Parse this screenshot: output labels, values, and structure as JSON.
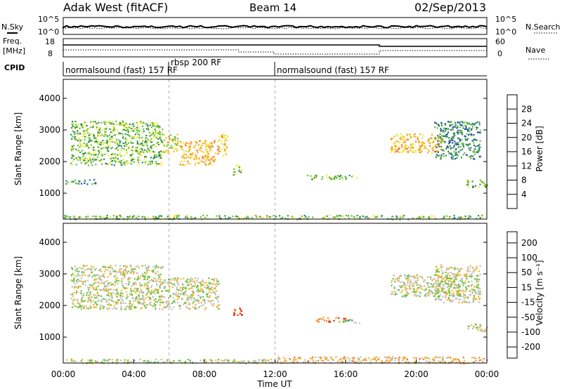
{
  "header": {
    "title": "Adak West (fitACF)",
    "beam": "Beam 14",
    "date": "02/Sep/2013"
  },
  "noise_panel": {
    "left_label": "N.Sky",
    "right_label": "N.Search",
    "left_ticks": [
      "10^5",
      "10^0"
    ],
    "right_ticks": [
      "10^5",
      "10^0"
    ]
  },
  "freq_panel": {
    "left_label_line1": "Freq.",
    "left_label_line2": "[MHz]",
    "right_label": "Nave",
    "left_ticks": [
      "18",
      "8"
    ],
    "right_ticks": [
      "60",
      "0"
    ]
  },
  "cpid_panel": {
    "label": "CPID",
    "programs": [
      {
        "name": "normalsound (fast) 157 RF",
        "start_h": 0
      },
      {
        "name": "rbsp 200 RF",
        "start_h": 6.3
      },
      {
        "name": "normalsound (fast) 157 RF",
        "start_h": 12
      }
    ]
  },
  "time_axis": {
    "label": "Time UT",
    "ticks": [
      "00:00",
      "04:00",
      "08:00",
      "12:00",
      "16:00",
      "20:00",
      "00:00"
    ]
  },
  "chart_data": [
    {
      "type": "heatmap",
      "parameter": "Power",
      "ylabel": "Slant Range [km]",
      "yticks": [
        1000,
        2000,
        3000,
        4000
      ],
      "ylim": [
        180,
        4600
      ],
      "xlim": [
        0,
        24
      ],
      "colorbar": {
        "label": "Power [dB]",
        "ticks": [
          "4",
          "8",
          "12",
          "16",
          "20",
          "24",
          "28"
        ],
        "colors": [
          "#1f1fe0",
          "#2e4fb0",
          "#2e8a56",
          "#66c23a",
          "#f2e836",
          "#f5b52c",
          "#f47a20",
          "#e02020"
        ]
      },
      "echo_regions": [
        {
          "t": [
            0.4,
            5.6
          ],
          "r": [
            1900,
            3300
          ],
          "level": 3
        },
        {
          "t": [
            5.6,
            6.6
          ],
          "r": [
            2300,
            2900
          ],
          "level": 4
        },
        {
          "t": [
            6.6,
            8.6
          ],
          "r": [
            1900,
            2700
          ],
          "level": 5
        },
        {
          "t": [
            8.7,
            9.3
          ],
          "r": [
            2200,
            2900
          ],
          "level": 5
        },
        {
          "t": [
            9.6,
            10.1
          ],
          "r": [
            1600,
            1900
          ],
          "level": 3
        },
        {
          "t": [
            0.1,
            1.8
          ],
          "r": [
            1300,
            1450
          ],
          "level": 2
        },
        {
          "t": [
            13.8,
            16.6
          ],
          "r": [
            1450,
            1600
          ],
          "level": 3
        },
        {
          "t": [
            18.5,
            21.5
          ],
          "r": [
            2300,
            2900
          ],
          "level": 5
        },
        {
          "t": [
            21.0,
            23.6
          ],
          "r": [
            2100,
            3300
          ],
          "level": 2
        },
        {
          "t": [
            22.8,
            24.0
          ],
          "r": [
            1200,
            1450
          ],
          "level": 3
        },
        {
          "t": [
            0.0,
            24.0
          ],
          "r": [
            190,
            320
          ],
          "level": 3
        }
      ]
    },
    {
      "type": "heatmap",
      "parameter": "Velocity",
      "ylabel": "Slant Range [km]",
      "yticks": [
        1000,
        2000,
        3000,
        4000
      ],
      "ylim": [
        180,
        4600
      ],
      "xlim": [
        0,
        24
      ],
      "colorbar": {
        "label": "Velocity [m s⁻¹]",
        "ticks": [
          "200",
          "100",
          "50",
          "15",
          "-15",
          "-50",
          "-100",
          "-200"
        ],
        "colors": [
          "#1f3fd0",
          "#2e62b8",
          "#2e8a56",
          "#66c23a",
          "#c0c0c0",
          "#f5b52c",
          "#f47a20",
          "#e02020"
        ]
      },
      "echo_regions": [
        {
          "t": [
            0.4,
            5.6
          ],
          "r": [
            1900,
            3300
          ],
          "level": 4
        },
        {
          "t": [
            5.6,
            8.8
          ],
          "r": [
            1900,
            2900
          ],
          "level": 4
        },
        {
          "t": [
            9.6,
            10.1
          ],
          "r": [
            1700,
            1950
          ],
          "level": 7
        },
        {
          "t": [
            14.3,
            16.0
          ],
          "r": [
            1500,
            1650
          ],
          "level": 6
        },
        {
          "t": [
            15.8,
            16.8
          ],
          "r": [
            1450,
            1600
          ],
          "level": 3
        },
        {
          "t": [
            18.5,
            22.5
          ],
          "r": [
            2300,
            3000
          ],
          "level": 4
        },
        {
          "t": [
            21.0,
            23.6
          ],
          "r": [
            2100,
            3300
          ],
          "level": 4
        },
        {
          "t": [
            22.8,
            24.0
          ],
          "r": [
            1200,
            1450
          ],
          "level": 4
        },
        {
          "t": [
            0.0,
            12.0
          ],
          "r": [
            190,
            320
          ],
          "level": 4
        },
        {
          "t": [
            12.0,
            24.0
          ],
          "r": [
            190,
            400
          ],
          "level": 5
        }
      ]
    }
  ]
}
